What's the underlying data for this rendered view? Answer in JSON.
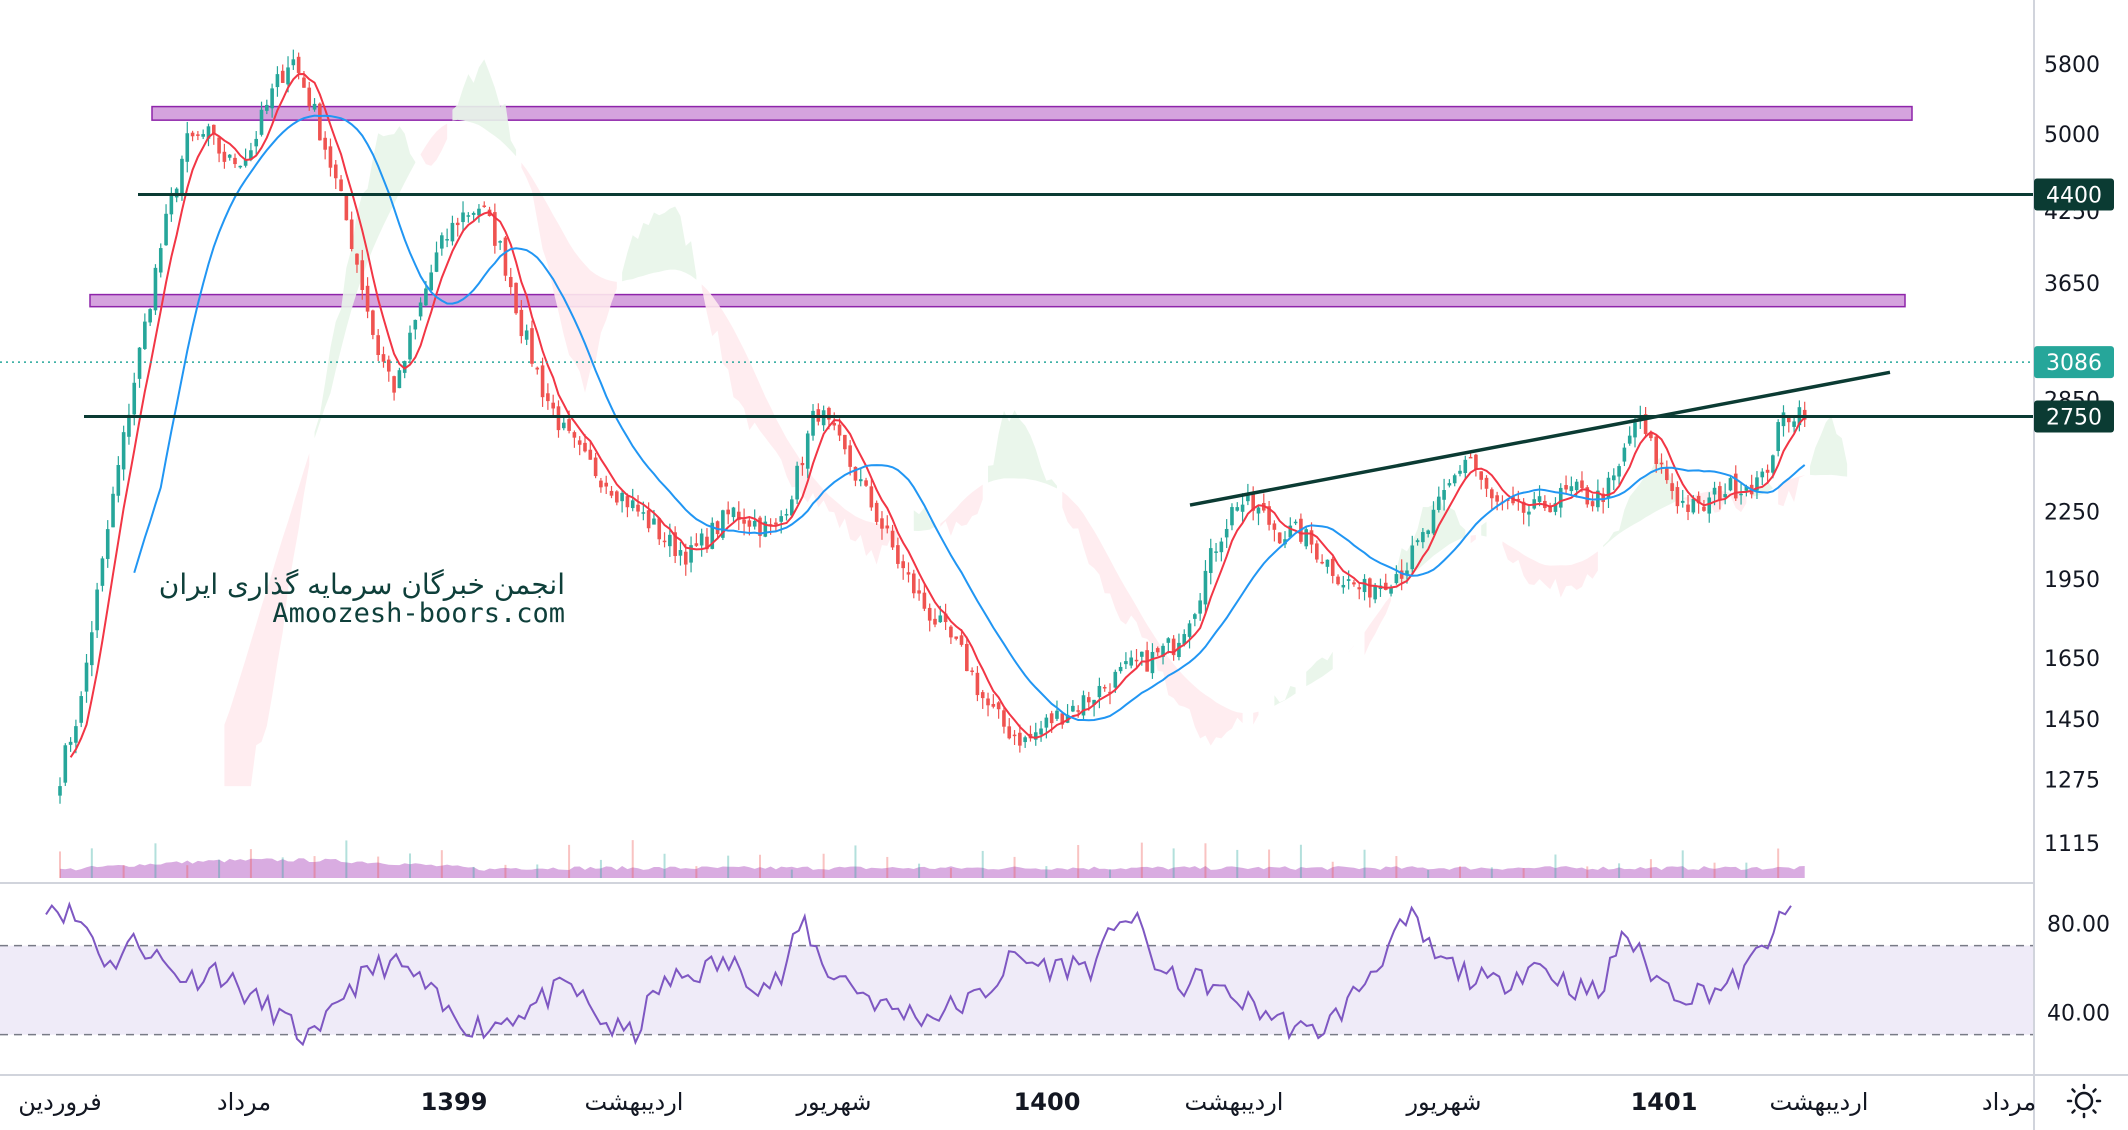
{
  "chart_data": [
    {
      "type": "candlestick",
      "scale": "log",
      "price_axis_ticks": [
        5800,
        5000,
        4250,
        3650,
        2850,
        2250,
        1950,
        1650,
        1450,
        1275,
        1115
      ],
      "price_tags": [
        {
          "value": 4400,
          "label": "4400",
          "color": "#0b3b33"
        },
        {
          "value": 3086,
          "label": "3086",
          "color": "#26a69a"
        },
        {
          "value": 2750,
          "label": "2750",
          "color": "#0b3b33"
        }
      ],
      "horizontal_lines": [
        4400,
        2750
      ],
      "current_price": 3086,
      "zones": [
        {
          "from": 5150,
          "to": 5300,
          "color": "#ce93d8"
        },
        {
          "from": 3470,
          "to": 3560,
          "color": "#ce93d8"
        }
      ],
      "trendline": {
        "from_price": 2280,
        "to_price": 3020
      },
      "close_path": [
        1290,
        1500,
        2000,
        2600,
        3300,
        4100,
        4900,
        5000,
        4700,
        4800,
        5400,
        5900,
        5300,
        4600,
        3900,
        3200,
        2900,
        3400,
        3900,
        4200,
        4300,
        3900,
        3300,
        2900,
        2650,
        2500,
        2400,
        2300,
        2200,
        2100,
        2050,
        2150,
        2250,
        2200,
        2150,
        2400,
        2800,
        2600,
        2400,
        2200,
        2000,
        1850,
        1750,
        1650,
        1500,
        1420,
        1380,
        1440,
        1480,
        1520,
        1570,
        1620,
        1650,
        1700,
        1850,
        2100,
        2300,
        2250,
        2150,
        2150,
        2050,
        1950,
        1900,
        1950,
        2000,
        2150,
        2350,
        2550,
        2300,
        2250,
        2250,
        2300,
        2350,
        2300,
        2400,
        2750,
        2500,
        2300,
        2250,
        2350,
        2380,
        2400,
        2750,
        2800
      ],
      "series": [
        {
          "name": "",
          "kind": "short_ma",
          "color": "#f23645"
        },
        {
          "name": "",
          "kind": "long_ma",
          "color": "#2196f3"
        },
        {
          "name": "",
          "kind": "ichimoku_cloud",
          "colors": [
            "#e8f5e9",
            "#ffebee"
          ]
        },
        {
          "name": "",
          "kind": "volume",
          "color": "#ba68c8"
        }
      ]
    },
    {
      "type": "line",
      "panel": "oscillator",
      "ticks": [
        80.0,
        40.0
      ],
      "band": [
        30,
        70
      ],
      "ylim": [
        15,
        95
      ],
      "values": [
        90,
        85,
        78,
        60,
        72,
        68,
        58,
        55,
        60,
        52,
        45,
        40,
        30,
        28,
        48,
        55,
        62,
        60,
        52,
        40,
        35,
        33,
        38,
        42,
        48,
        52,
        40,
        32,
        30,
        50,
        55,
        58,
        62,
        60,
        52,
        55,
        82,
        60,
        55,
        48,
        42,
        40,
        38,
        42,
        45,
        52,
        65,
        62,
        60,
        62,
        60,
        85,
        78,
        58,
        52,
        55,
        48,
        45,
        40,
        35,
        30,
        35,
        45,
        58,
        72,
        82,
        65,
        60,
        55,
        52,
        58,
        62,
        55,
        50,
        48,
        78,
        62,
        52,
        48,
        50,
        52,
        60,
        75,
        85
      ],
      "color": "#7e57c2"
    }
  ],
  "time_axis": {
    "labels": [
      "فروردین",
      "مرداد",
      "1399",
      "اردیبهشت",
      "شهریور",
      "1400",
      "اردیبهشت",
      "شهریور",
      "1401",
      "اردیبهشت",
      "مرداد"
    ],
    "bold": [
      false,
      false,
      true,
      false,
      false,
      true,
      false,
      false,
      true,
      false,
      false
    ]
  },
  "watermark": {
    "line1": "انجمن خبرگان سرمایه گذاری ایران",
    "line2": "Amoozesh-boors.com"
  },
  "icons": {
    "settings": "sun-settings-icon"
  }
}
